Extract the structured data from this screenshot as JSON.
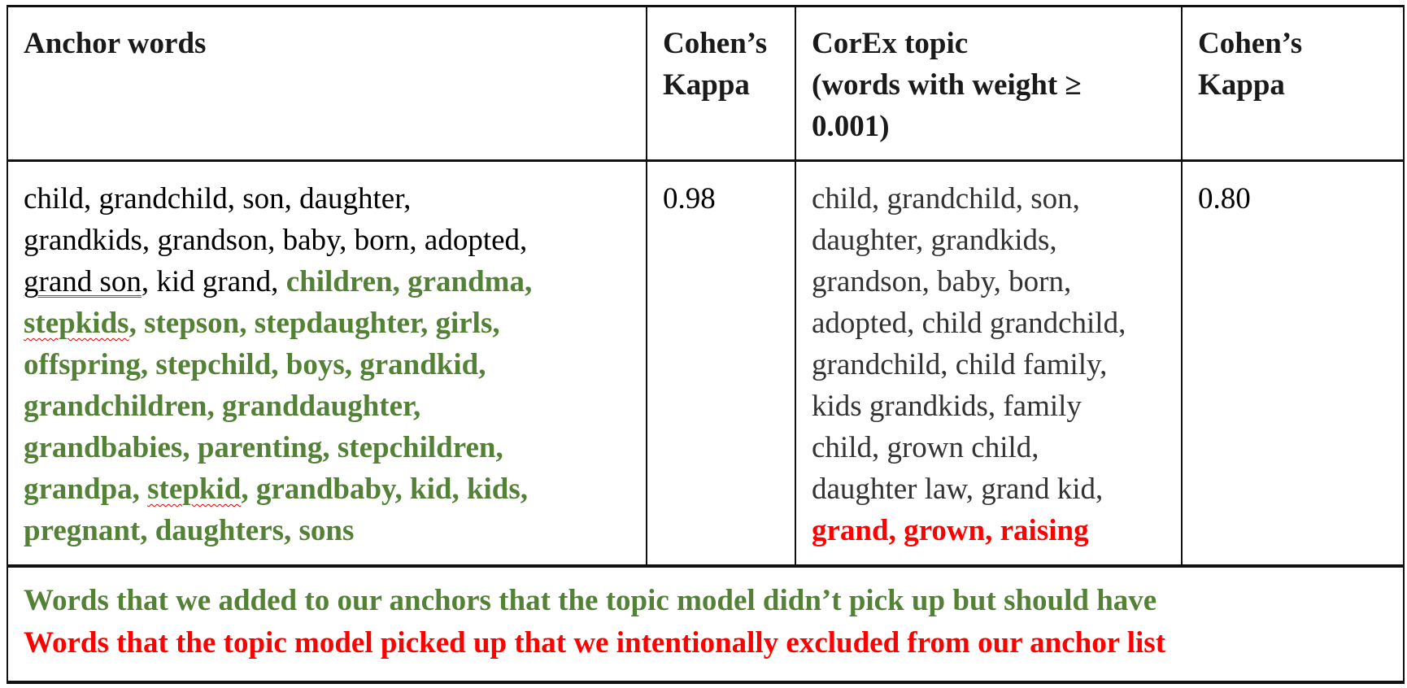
{
  "colors": {
    "added": "#538135",
    "excluded": "#ff0000",
    "corex_text": "#333333"
  },
  "header": {
    "anchor_words": [
      "Anchor words"
    ],
    "kappa_1": [
      "Cohen’s",
      "Kappa"
    ],
    "corex_topic": [
      "CorEx topic",
      "(words with weight ≥",
      "0.001)"
    ],
    "kappa_2": [
      "Cohen’s",
      "Kappa"
    ]
  },
  "row": {
    "anchor_words": [
      [
        {
          "text": "child, grandchild, son, daughter,",
          "style": "black"
        }
      ],
      [
        {
          "text": "grandkids, grandson, baby, born, adopted,",
          "style": "black"
        }
      ],
      [
        {
          "text": "grand son",
          "style": "black u-blue"
        },
        {
          "text": ", kid grand, ",
          "style": "black"
        },
        {
          "text": "children, grandma,",
          "style": "green"
        }
      ],
      [
        {
          "text": "stepkids",
          "style": "green u-wavy"
        },
        {
          "text": ", stepson, stepdaughter, girls,",
          "style": "green"
        }
      ],
      [
        {
          "text": "offspring, stepchild, boys, grandkid,",
          "style": "green"
        }
      ],
      [
        {
          "text": "grandchildren, granddaughter,",
          "style": "green"
        }
      ],
      [
        {
          "text": "grandbabies, parenting, stepchildren,",
          "style": "green"
        }
      ],
      [
        {
          "text": "grandpa, ",
          "style": "green"
        },
        {
          "text": "stepkid",
          "style": "green u-wavy"
        },
        {
          "text": ", grandbaby, kid, kids,",
          "style": "green"
        }
      ],
      [
        {
          "text": "pregnant, daughters, sons",
          "style": "green"
        }
      ]
    ],
    "kappa_1": [
      [
        {
          "text": "0.98",
          "style": "black"
        }
      ]
    ],
    "corex_topic": [
      [
        {
          "text": "child, grandchild, son,",
          "style": "gray"
        }
      ],
      [
        {
          "text": "daughter, grandkids,",
          "style": "gray"
        }
      ],
      [
        {
          "text": "grandson, baby, born,",
          "style": "gray"
        }
      ],
      [
        {
          "text": "adopted, child grandchild,",
          "style": "gray"
        }
      ],
      [
        {
          "text": "grandchild, child family,",
          "style": "gray"
        }
      ],
      [
        {
          "text": "kids grandkids, family",
          "style": "gray"
        }
      ],
      [
        {
          "text": "child, grown child,",
          "style": "gray"
        }
      ],
      [
        {
          "text": "daughter law, grand kid,",
          "style": "gray"
        }
      ],
      [
        {
          "text": "grand, grown, raising",
          "style": "red"
        }
      ]
    ],
    "kappa_2": [
      [
        {
          "text": "0.80",
          "style": "black"
        }
      ]
    ]
  },
  "legend": [
    [
      {
        "text": "Words that we added to our anchors that the topic model didn’t pick up but should have",
        "style": "green"
      }
    ],
    [
      {
        "text": "Words that the topic model picked up that we intentionally excluded from our anchor list",
        "style": "red"
      }
    ]
  ]
}
